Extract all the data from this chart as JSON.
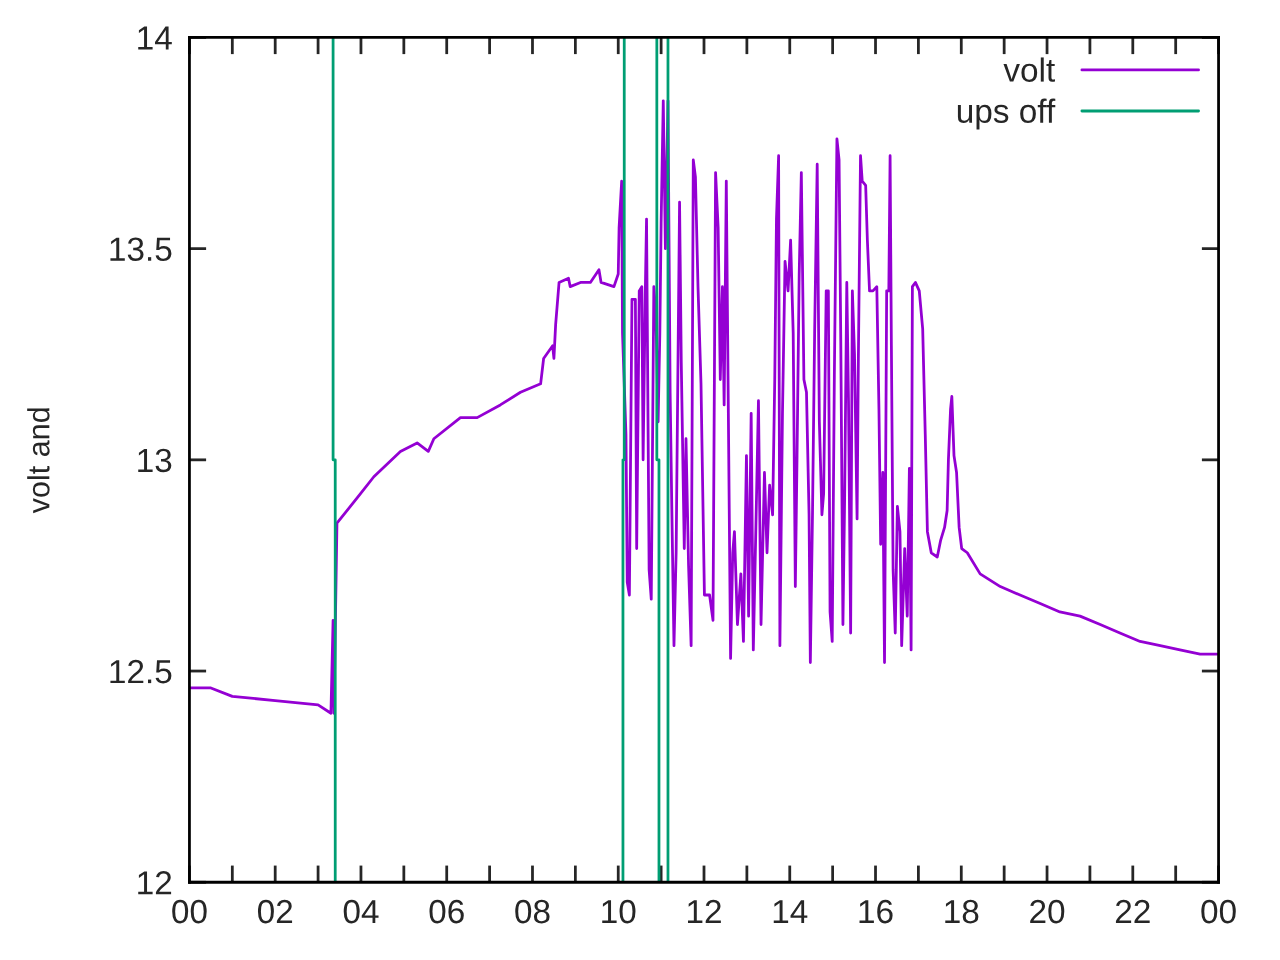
{
  "chart_data": {
    "type": "line",
    "ylabel": "volt and",
    "xlim": [
      0,
      24
    ],
    "ylim": [
      12,
      14
    ],
    "xticks": [
      {
        "value": 0,
        "label": "00"
      },
      {
        "value": 1,
        "label": null
      },
      {
        "value": 2,
        "label": "02"
      },
      {
        "value": 3,
        "label": null
      },
      {
        "value": 4,
        "label": "04"
      },
      {
        "value": 5,
        "label": null
      },
      {
        "value": 6,
        "label": "06"
      },
      {
        "value": 7,
        "label": null
      },
      {
        "value": 8,
        "label": "08"
      },
      {
        "value": 9,
        "label": null
      },
      {
        "value": 10,
        "label": "10"
      },
      {
        "value": 11,
        "label": null
      },
      {
        "value": 12,
        "label": "12"
      },
      {
        "value": 13,
        "label": null
      },
      {
        "value": 14,
        "label": "14"
      },
      {
        "value": 15,
        "label": null
      },
      {
        "value": 16,
        "label": "16"
      },
      {
        "value": 17,
        "label": null
      },
      {
        "value": 18,
        "label": "18"
      },
      {
        "value": 19,
        "label": null
      },
      {
        "value": 20,
        "label": "20"
      },
      {
        "value": 21,
        "label": null
      },
      {
        "value": 22,
        "label": "22"
      },
      {
        "value": 23,
        "label": null
      },
      {
        "value": 24,
        "label": "00"
      }
    ],
    "yticks": [
      12,
      12.5,
      13,
      13.5,
      14
    ],
    "grid": false,
    "legend": "top right",
    "marker": "none",
    "line_style": "solid",
    "series": [
      {
        "name": "volt",
        "color": "#9400d3",
        "x": [
          0,
          0.5,
          1,
          2,
          3,
          3.3,
          3.35,
          3.37,
          3.44,
          3.99,
          4.3,
          4.92,
          5.31,
          5.57,
          5.7,
          6.32,
          6.71,
          7.25,
          7.72,
          8.19,
          8.26,
          8.47,
          8.5,
          8.54,
          8.62,
          8.84,
          8.88,
          9.12,
          9.35,
          9.55,
          9.6,
          9.9,
          10.0,
          10.02,
          10.08,
          10.1,
          10.18,
          10.21,
          10.26,
          10.32,
          10.4,
          10.43,
          10.49,
          10.55,
          10.58,
          10.63,
          10.66,
          10.72,
          10.77,
          10.83,
          10.88,
          10.93,
          10.97,
          11.0,
          11.05,
          11.1,
          11.16,
          11.21,
          11.25,
          11.3,
          11.35,
          11.43,
          11.47,
          11.54,
          11.58,
          11.64,
          11.7,
          11.75,
          11.8,
          11.86,
          11.93,
          12.01,
          12.13,
          12.21,
          12.27,
          12.33,
          12.38,
          12.43,
          12.47,
          12.52,
          12.56,
          12.62,
          12.67,
          12.71,
          12.78,
          12.86,
          12.92,
          12.99,
          13.04,
          13.1,
          13.15,
          13.21,
          13.27,
          13.33,
          13.41,
          13.47,
          13.53,
          13.6,
          13.65,
          13.69,
          13.74,
          13.77,
          13.83,
          13.89,
          13.96,
          14.02,
          14.08,
          14.13,
          14.17,
          14.22,
          14.27,
          14.33,
          14.39,
          14.45,
          14.48,
          14.53,
          14.58,
          14.64,
          14.69,
          14.75,
          14.79,
          14.85,
          14.9,
          14.94,
          14.99,
          15.04,
          15.1,
          15.15,
          15.19,
          15.24,
          15.28,
          15.33,
          15.37,
          15.42,
          15.46,
          15.51,
          15.57,
          15.6,
          15.65,
          15.69,
          15.77,
          15.81,
          15.86,
          15.94,
          16.03,
          16.08,
          16.12,
          16.17,
          16.21,
          16.26,
          16.31,
          16.34,
          16.37,
          16.41,
          16.46,
          16.51,
          16.57,
          16.61,
          16.68,
          16.74,
          16.79,
          16.83,
          16.86,
          16.93,
          17.02,
          17.1,
          17.16,
          17.21,
          17.3,
          17.44,
          17.52,
          17.61,
          17.67,
          17.7,
          17.75,
          17.78,
          17.83,
          17.89,
          17.95,
          18.01,
          18.14,
          18.44,
          18.91,
          19.37,
          19.84,
          20.3,
          20.77,
          21.24,
          21.7,
          22.17,
          22.64,
          23.1,
          23.57,
          23.96
        ],
        "values": [
          12.46,
          12.46,
          12.44,
          12.43,
          12.42,
          12.4,
          12.62,
          12.4,
          12.85,
          12.92,
          12.96,
          13.02,
          13.04,
          13.02,
          13.05,
          13.1,
          13.1,
          13.13,
          13.16,
          13.18,
          13.24,
          13.27,
          13.24,
          13.32,
          13.42,
          13.43,
          13.41,
          13.42,
          13.42,
          13.45,
          13.42,
          13.41,
          13.44,
          13.55,
          13.66,
          13.3,
          13.06,
          12.71,
          12.68,
          13.38,
          13.38,
          12.79,
          13.4,
          13.41,
          13.0,
          13.39,
          13.57,
          12.74,
          12.67,
          13.41,
          13.34,
          13.09,
          13.3,
          13.56,
          13.85,
          13.5,
          13.85,
          13.16,
          12.88,
          12.56,
          12.78,
          13.61,
          13.23,
          12.79,
          13.05,
          12.75,
          12.56,
          13.71,
          13.67,
          13.41,
          13.18,
          12.68,
          12.68,
          12.62,
          13.68,
          13.55,
          13.19,
          13.41,
          13.13,
          13.66,
          13.2,
          12.53,
          12.78,
          12.83,
          12.61,
          12.73,
          12.57,
          13.01,
          12.63,
          13.11,
          12.55,
          12.84,
          13.14,
          12.61,
          12.97,
          12.78,
          12.94,
          12.87,
          13.19,
          13.57,
          13.72,
          12.56,
          13.11,
          13.47,
          13.4,
          13.52,
          13.3,
          12.7,
          13.01,
          13.44,
          13.68,
          13.19,
          13.16,
          12.87,
          12.52,
          12.87,
          13.3,
          13.7,
          13.09,
          12.87,
          12.92,
          13.4,
          13.4,
          12.64,
          12.57,
          13.2,
          13.76,
          13.71,
          13.28,
          12.61,
          12.91,
          13.42,
          13.14,
          12.59,
          13.4,
          13.25,
          12.86,
          13.24,
          13.72,
          13.66,
          13.65,
          13.52,
          13.4,
          13.4,
          13.41,
          13.12,
          12.8,
          12.97,
          12.52,
          13.4,
          13.4,
          13.72,
          13.27,
          12.74,
          12.59,
          12.89,
          12.83,
          12.56,
          12.79,
          12.63,
          12.98,
          12.55,
          13.41,
          13.42,
          13.4,
          13.31,
          13.06,
          12.83,
          12.78,
          12.77,
          12.81,
          12.84,
          12.88,
          13.0,
          13.12,
          13.15,
          13.01,
          12.97,
          12.84,
          12.79,
          12.78,
          12.73,
          12.7,
          12.68,
          12.66,
          12.64,
          12.63,
          12.61,
          12.59,
          12.57,
          12.56,
          12.55,
          12.54,
          12.54
        ]
      },
      {
        "name": "ups off",
        "color": "#009e73",
        "x": [
          3.35,
          3.35,
          3.4,
          3.4,
          null,
          10.11,
          10.11,
          10.14,
          10.14,
          null,
          10.9,
          10.9,
          10.95,
          10.95,
          null,
          11.16,
          11.16
        ],
        "values": [
          14,
          13,
          13,
          12,
          null,
          12,
          13,
          13,
          14,
          null,
          14,
          13,
          13,
          12,
          null,
          14,
          12
        ]
      }
    ]
  }
}
